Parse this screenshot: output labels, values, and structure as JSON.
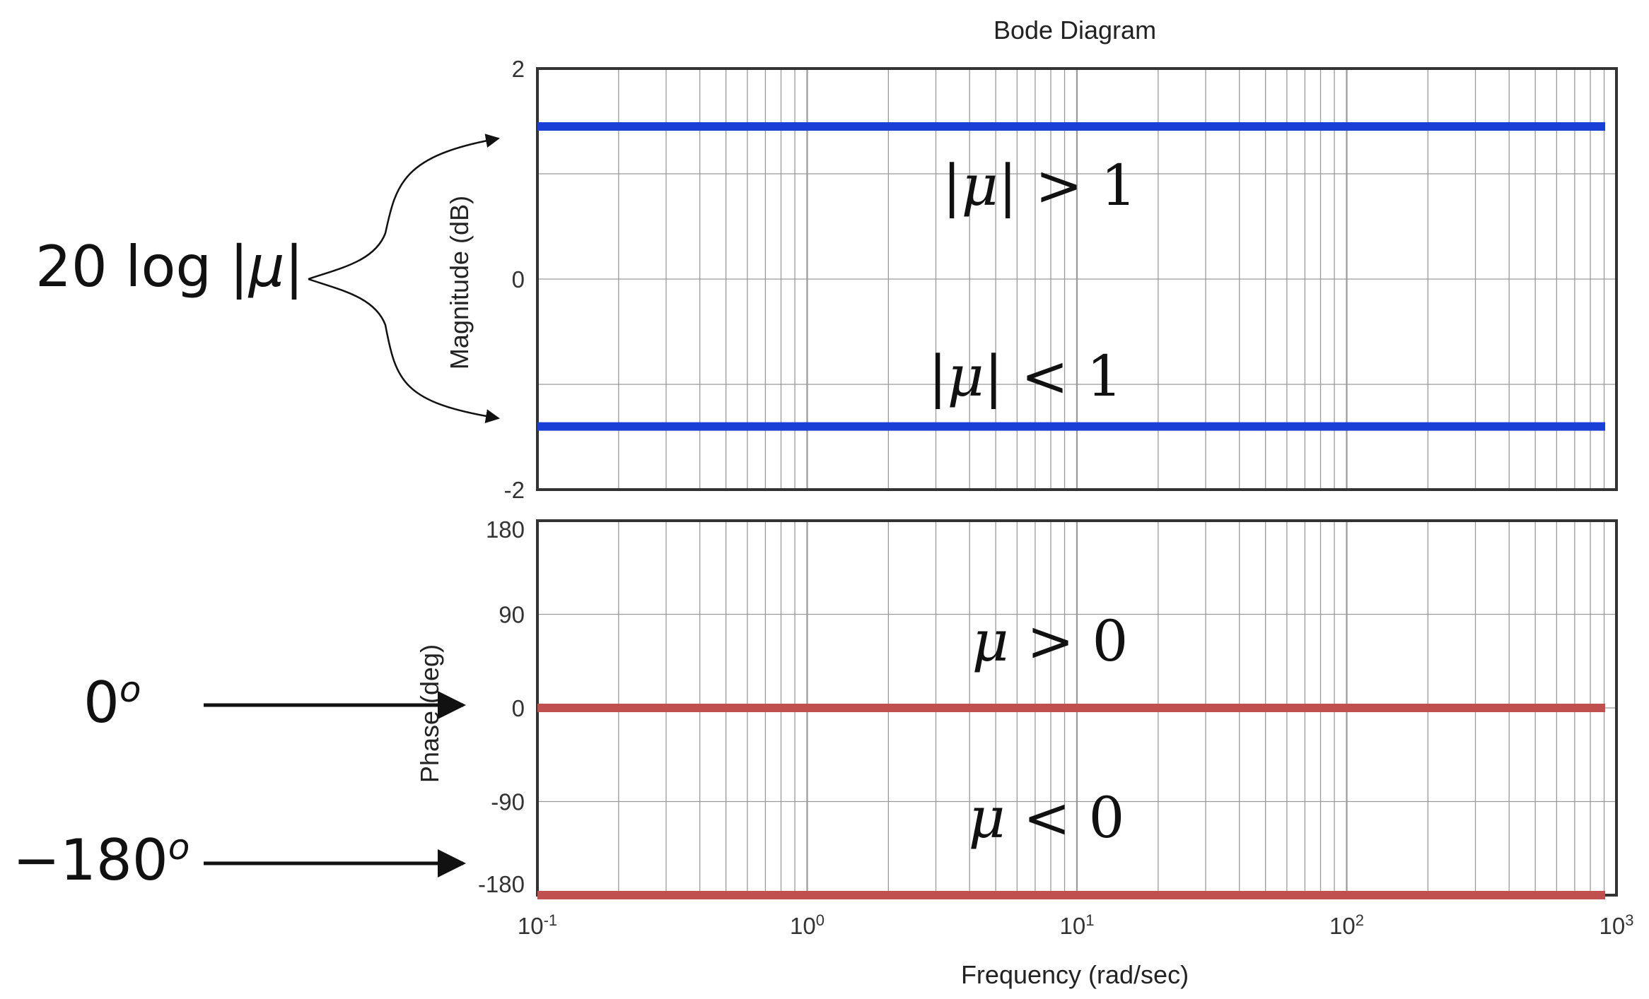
{
  "chart_data": [
    {
      "type": "line",
      "panel": "magnitude",
      "title": "Bode Diagram",
      "xlabel": "Frequency  (rad/sec)",
      "ylabel": "Magnitude (dB)",
      "xscale": "log",
      "xlim": [
        0.1,
        1000
      ],
      "ylim": [
        -2,
        2
      ],
      "yticks": [
        "2",
        "0",
        "-2"
      ],
      "grid": true,
      "series": [
        {
          "x": [
            0.1,
            1000
          ],
          "values": [
            1.45,
            1.45
          ],
          "color": "#1a3fd6"
        },
        {
          "x": [
            0.1,
            1000
          ],
          "values": [
            -1.4,
            -1.4
          ],
          "color": "#1a3fd6"
        }
      ],
      "annotations": [
        {
          "text_pre": "|",
          "text_mu": "μ",
          "text_post": "| > 1"
        },
        {
          "text_pre": "|",
          "text_mu": "μ",
          "text_post": "| < 1"
        }
      ]
    },
    {
      "type": "line",
      "panel": "phase",
      "xlabel": "Frequency  (rad/sec)",
      "ylabel": "Phase (deg)",
      "xscale": "log",
      "xlim": [
        0.1,
        1000
      ],
      "ylim": [
        -180,
        180
      ],
      "yticks": [
        "180",
        "90",
        "0",
        "-90",
        "-180"
      ],
      "xticks": [
        {
          "base": "10",
          "exp": "-1"
        },
        {
          "base": "10",
          "exp": "0"
        },
        {
          "base": "10",
          "exp": "1"
        },
        {
          "base": "10",
          "exp": "2"
        },
        {
          "base": "10",
          "exp": "3"
        }
      ],
      "grid": true,
      "series": [
        {
          "x": [
            0.1,
            1000
          ],
          "values": [
            0,
            0
          ],
          "color": "#c0504d"
        },
        {
          "x": [
            0.1,
            1000
          ],
          "values": [
            -180,
            -180
          ],
          "color": "#c0504d"
        }
      ],
      "annotations": [
        {
          "text_mu": "μ",
          "text_post": " > 0"
        },
        {
          "text_mu": "μ",
          "text_post": " < 0"
        }
      ]
    }
  ],
  "side_labels": {
    "magnitude": {
      "text_pre": "20 log |",
      "text_mu": "μ",
      "text_post": "|"
    },
    "phase_zero": {
      "text": "0",
      "sup": "o"
    },
    "phase_neg": {
      "text": "−180",
      "sup": "o"
    }
  },
  "colors": {
    "magnitude_line": "#1a3fd6",
    "phase_line": "#c0504d",
    "grid": "#9a9a9a",
    "frame": "#333333"
  }
}
